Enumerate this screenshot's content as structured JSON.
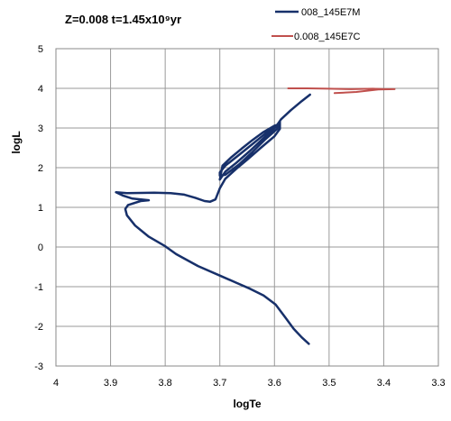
{
  "chart_data": {
    "type": "line",
    "title": "Z=0.008  t=1.45x10⁹yr",
    "xlabel": "logTe",
    "ylabel": "logL",
    "xlim": [
      4.0,
      3.3
    ],
    "ylim": [
      -3,
      5
    ],
    "x_ticks": [
      "4",
      "3.9",
      "3.8",
      "3.7",
      "3.6",
      "3.5",
      "3.4",
      "3.3"
    ],
    "y_ticks": [
      "-3",
      "-2",
      "-1",
      "0",
      "1",
      "2",
      "3",
      "4",
      "5"
    ],
    "grid": true,
    "legend_position": "top-right",
    "series": [
      {
        "name": "008_145E7M",
        "color": "#17306a",
        "points": [
          [
            3.537,
            -2.44
          ],
          [
            3.55,
            -2.28
          ],
          [
            3.565,
            -2.06
          ],
          [
            3.58,
            -1.78
          ],
          [
            3.598,
            -1.45
          ],
          [
            3.62,
            -1.22
          ],
          [
            3.645,
            -1.05
          ],
          [
            3.67,
            -0.9
          ],
          [
            3.7,
            -0.72
          ],
          [
            3.74,
            -0.48
          ],
          [
            3.78,
            -0.18
          ],
          [
            3.8,
            0.02
          ],
          [
            3.83,
            0.26
          ],
          [
            3.855,
            0.54
          ],
          [
            3.87,
            0.8
          ],
          [
            3.873,
            0.96
          ],
          [
            3.868,
            1.06
          ],
          [
            3.845,
            1.16
          ],
          [
            3.83,
            1.18
          ],
          [
            3.86,
            1.22
          ],
          [
            3.878,
            1.3
          ],
          [
            3.89,
            1.38
          ],
          [
            3.87,
            1.36
          ],
          [
            3.82,
            1.37
          ],
          [
            3.79,
            1.36
          ],
          [
            3.765,
            1.32
          ],
          [
            3.745,
            1.24
          ],
          [
            3.728,
            1.16
          ],
          [
            3.718,
            1.14
          ],
          [
            3.708,
            1.2
          ],
          [
            3.7,
            1.48
          ],
          [
            3.69,
            1.72
          ],
          [
            3.67,
            1.97
          ],
          [
            3.65,
            2.2
          ],
          [
            3.625,
            2.5
          ],
          [
            3.6,
            2.79
          ],
          [
            3.59,
            2.98
          ],
          [
            3.59,
            3.16
          ],
          [
            3.595,
            3.07
          ],
          [
            3.615,
            2.88
          ],
          [
            3.64,
            2.6
          ],
          [
            3.665,
            2.32
          ],
          [
            3.69,
            2.05
          ],
          [
            3.7,
            1.88
          ],
          [
            3.7,
            1.8
          ],
          [
            3.69,
            1.82
          ],
          [
            3.665,
            2.08
          ],
          [
            3.64,
            2.4
          ],
          [
            3.618,
            2.7
          ],
          [
            3.595,
            2.98
          ],
          [
            3.59,
            3.1
          ],
          [
            3.6,
            3.06
          ],
          [
            3.62,
            2.9
          ],
          [
            3.64,
            2.7
          ],
          [
            3.66,
            2.48
          ],
          [
            3.68,
            2.25
          ],
          [
            3.695,
            2.05
          ],
          [
            3.7,
            1.7
          ],
          [
            3.69,
            1.9
          ],
          [
            3.67,
            2.12
          ],
          [
            3.645,
            2.42
          ],
          [
            3.622,
            2.72
          ],
          [
            3.598,
            3.02
          ],
          [
            3.588,
            3.22
          ],
          [
            3.57,
            3.45
          ],
          [
            3.55,
            3.68
          ],
          [
            3.535,
            3.84
          ]
        ]
      },
      {
        "name": "0.008_145E7C",
        "color": "#c0504d",
        "points": [
          [
            3.575,
            4.0
          ],
          [
            3.54,
            4.0
          ],
          [
            3.5,
            3.99
          ],
          [
            3.46,
            3.98
          ],
          [
            3.42,
            3.99
          ],
          [
            3.4,
            3.98
          ],
          [
            3.38,
            3.98
          ],
          [
            3.41,
            3.97
          ],
          [
            3.45,
            3.91
          ],
          [
            3.49,
            3.88
          ]
        ]
      }
    ]
  }
}
